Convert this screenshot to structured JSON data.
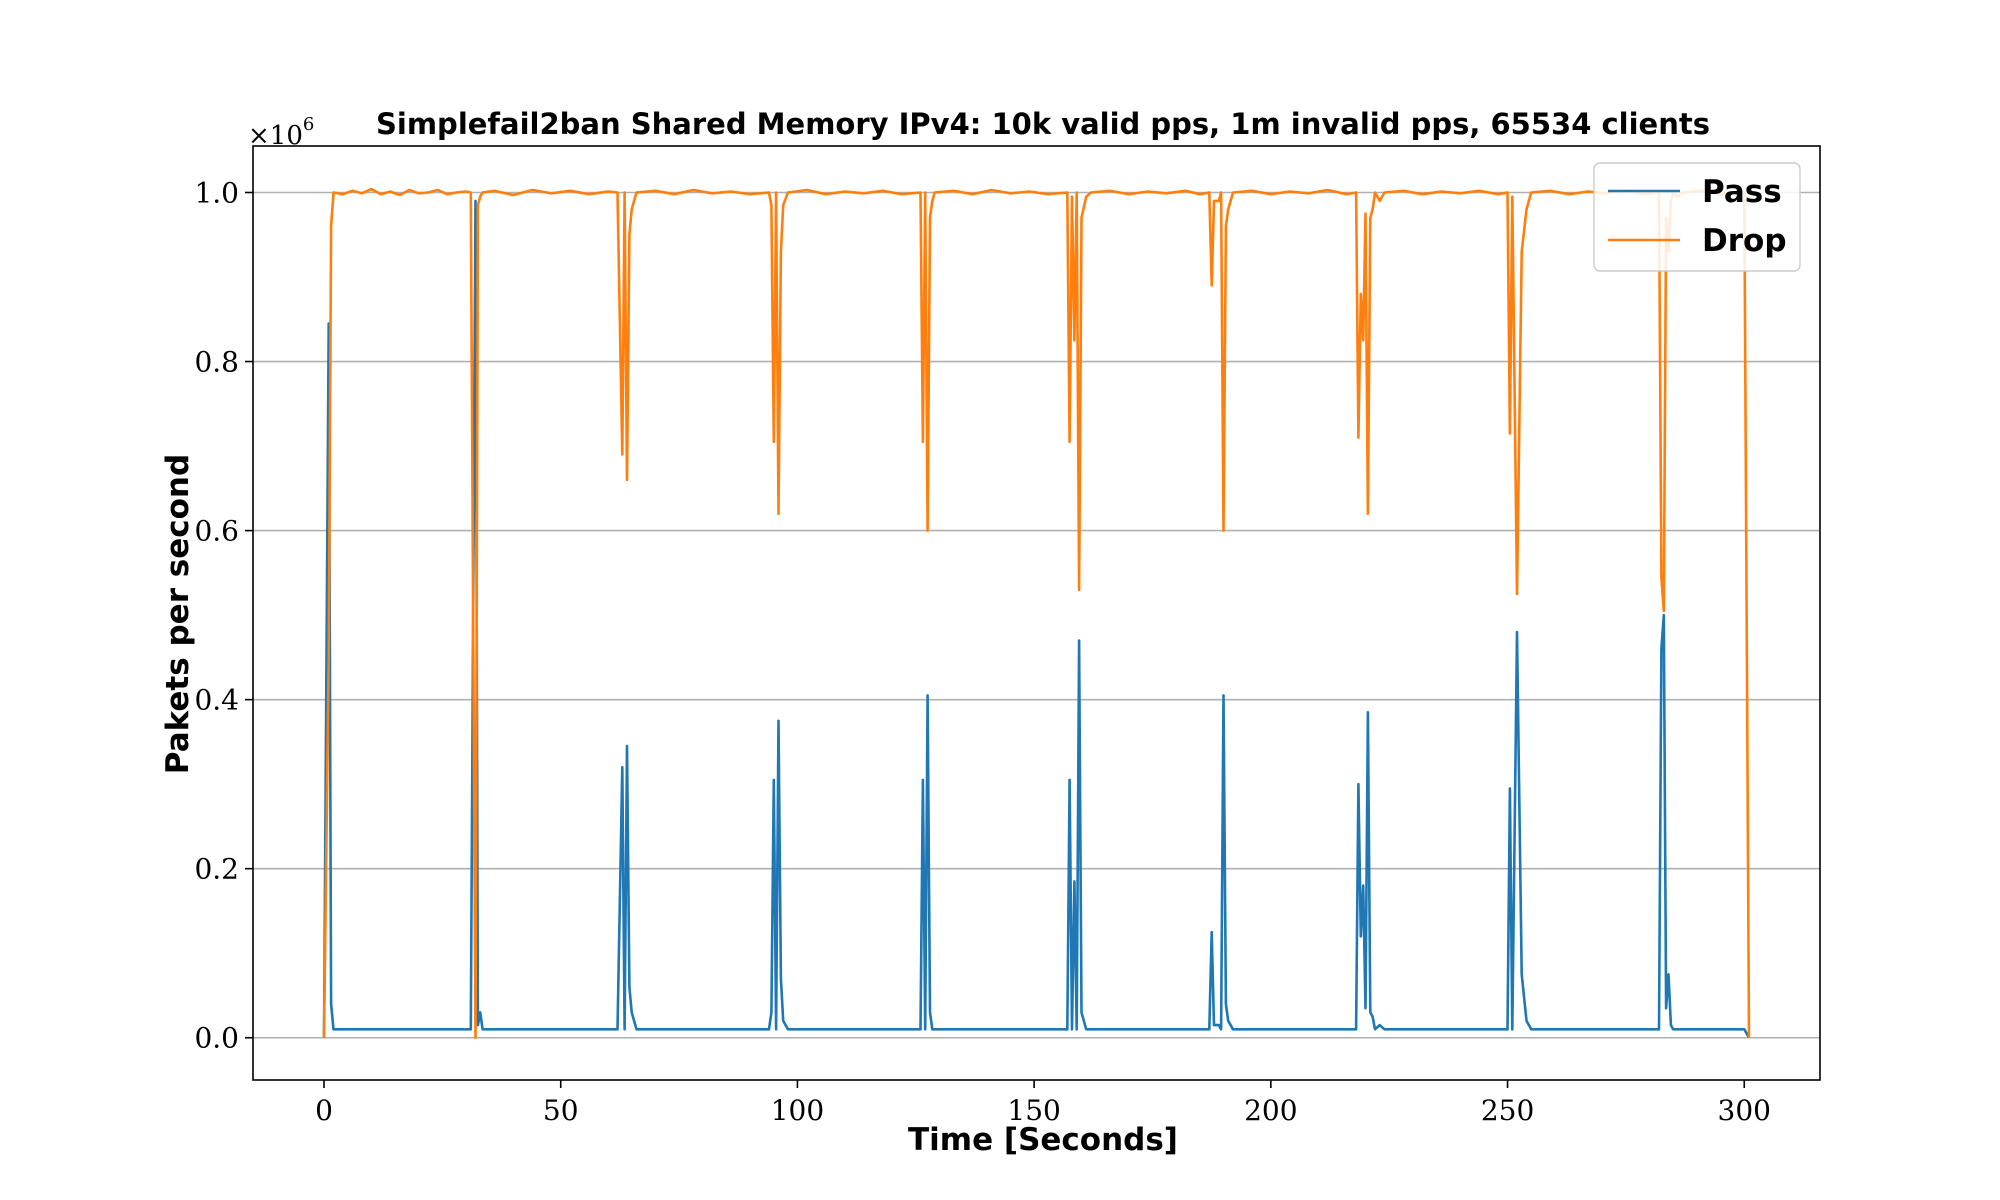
{
  "chart_data": {
    "type": "line",
    "title": "Simplefail2ban Shared Memory IPv4: 10k valid pps, 1m invalid pps, 65534 clients",
    "xlabel": "Time [Seconds]",
    "ylabel": "Pakets per second",
    "y_multiplier_label": "×10",
    "y_multiplier_exponent": "6",
    "xlim": [
      -15,
      316
    ],
    "ylim": [
      -0.05,
      1.055
    ],
    "x_ticks": [
      0,
      50,
      100,
      150,
      200,
      250,
      300
    ],
    "x_tick_labels": [
      "0",
      "50",
      "100",
      "150",
      "200",
      "250",
      "300"
    ],
    "y_ticks": [
      0.0,
      0.2,
      0.4,
      0.6,
      0.8,
      1.0
    ],
    "y_tick_labels": [
      "0.0",
      "0.2",
      "0.4",
      "0.6",
      "0.8",
      "1.0"
    ],
    "y_grid": true,
    "x_grid": false,
    "legend_position": "top-right",
    "series": [
      {
        "name": "Pass",
        "color": "#1f77b4",
        "points": [
          [
            0,
            0
          ],
          [
            1,
            0.845
          ],
          [
            1.5,
            0.04
          ],
          [
            2,
            0.01
          ],
          [
            31,
            0.01
          ],
          [
            32,
            0.99
          ],
          [
            32.5,
            0.015
          ],
          [
            33,
            0.03
          ],
          [
            33.5,
            0.01
          ],
          [
            62,
            0.01
          ],
          [
            63,
            0.32
          ],
          [
            63.5,
            0.01
          ],
          [
            64,
            0.345
          ],
          [
            64.5,
            0.06
          ],
          [
            65,
            0.03
          ],
          [
            66,
            0.01
          ],
          [
            94,
            0.01
          ],
          [
            94.5,
            0.03
          ],
          [
            95,
            0.305
          ],
          [
            95.5,
            0.01
          ],
          [
            96,
            0.375
          ],
          [
            96.5,
            0.07
          ],
          [
            97,
            0.02
          ],
          [
            98,
            0.01
          ],
          [
            126,
            0.01
          ],
          [
            126.5,
            0.305
          ],
          [
            127,
            0.01
          ],
          [
            127.5,
            0.405
          ],
          [
            128,
            0.03
          ],
          [
            128.5,
            0.01
          ],
          [
            157,
            0.01
          ],
          [
            157.5,
            0.305
          ],
          [
            158,
            0.01
          ],
          [
            158.5,
            0.185
          ],
          [
            159,
            0.01
          ],
          [
            159.5,
            0.47
          ],
          [
            160,
            0.03
          ],
          [
            161,
            0.01
          ],
          [
            187,
            0.01
          ],
          [
            187.5,
            0.125
          ],
          [
            188,
            0.015
          ],
          [
            189,
            0.015
          ],
          [
            189.5,
            0.01
          ],
          [
            190,
            0.405
          ],
          [
            190.5,
            0.04
          ],
          [
            191,
            0.02
          ],
          [
            192,
            0.01
          ],
          [
            218,
            0.01
          ],
          [
            218.5,
            0.3
          ],
          [
            219,
            0.12
          ],
          [
            219.5,
            0.18
          ],
          [
            220,
            0.035
          ],
          [
            220.5,
            0.385
          ],
          [
            221,
            0.03
          ],
          [
            221.5,
            0.025
          ],
          [
            222,
            0.01
          ],
          [
            223,
            0.015
          ],
          [
            224,
            0.01
          ],
          [
            250,
            0.01
          ],
          [
            250.5,
            0.295
          ],
          [
            251,
            0.01
          ],
          [
            252,
            0.48
          ],
          [
            253,
            0.075
          ],
          [
            254,
            0.02
          ],
          [
            255,
            0.01
          ],
          [
            282,
            0.01
          ],
          [
            282.5,
            0.46
          ],
          [
            283,
            0.5
          ],
          [
            283.5,
            0.035
          ],
          [
            284,
            0.075
          ],
          [
            284.5,
            0.015
          ],
          [
            285,
            0.01
          ],
          [
            286,
            0.01
          ],
          [
            287,
            0.01
          ],
          [
            300,
            0.01
          ],
          [
            301,
            0.0
          ]
        ]
      },
      {
        "name": "Drop",
        "color": "#ff7f0e",
        "points": [
          [
            0,
            0
          ],
          [
            1,
            0.45
          ],
          [
            1.5,
            0.96
          ],
          [
            2,
            1.0
          ],
          [
            4,
            0.998
          ],
          [
            6,
            1.002
          ],
          [
            8,
            0.999
          ],
          [
            10,
            1.004
          ],
          [
            12,
            0.998
          ],
          [
            14,
            1.001
          ],
          [
            16,
            0.997
          ],
          [
            18,
            1.003
          ],
          [
            20,
            0.999
          ],
          [
            22,
            1.0
          ],
          [
            24,
            1.003
          ],
          [
            26,
            0.998
          ],
          [
            28,
            1.0
          ],
          [
            30,
            1.001
          ],
          [
            31,
            1.0
          ],
          [
            32,
            0.0
          ],
          [
            32.5,
            0.985
          ],
          [
            33,
            0.995
          ],
          [
            33.5,
            1.0
          ],
          [
            36,
            1.002
          ],
          [
            40,
            0.997
          ],
          [
            44,
            1.003
          ],
          [
            48,
            0.999
          ],
          [
            52,
            1.002
          ],
          [
            56,
            0.998
          ],
          [
            60,
            1.001
          ],
          [
            62,
            1.0
          ],
          [
            63,
            0.69
          ],
          [
            63.5,
            1.0
          ],
          [
            64,
            0.66
          ],
          [
            64.5,
            0.95
          ],
          [
            65,
            0.98
          ],
          [
            66,
            1.0
          ],
          [
            70,
            1.002
          ],
          [
            74,
            0.998
          ],
          [
            78,
            1.003
          ],
          [
            82,
            0.999
          ],
          [
            86,
            1.001
          ],
          [
            90,
            0.998
          ],
          [
            94,
            1.0
          ],
          [
            94.5,
            0.985
          ],
          [
            95,
            0.705
          ],
          [
            95.5,
            1.0
          ],
          [
            96,
            0.62
          ],
          [
            96.5,
            0.93
          ],
          [
            97,
            0.985
          ],
          [
            98,
            1.0
          ],
          [
            102,
            1.003
          ],
          [
            106,
            0.998
          ],
          [
            110,
            1.001
          ],
          [
            114,
            0.999
          ],
          [
            118,
            1.002
          ],
          [
            122,
            0.998
          ],
          [
            126,
            1.0
          ],
          [
            126.5,
            0.705
          ],
          [
            127,
            1.0
          ],
          [
            127.5,
            0.6
          ],
          [
            128,
            0.97
          ],
          [
            128.5,
            0.99
          ],
          [
            129,
            1.0
          ],
          [
            133,
            1.002
          ],
          [
            137,
            0.998
          ],
          [
            141,
            1.003
          ],
          [
            145,
            0.999
          ],
          [
            149,
            1.001
          ],
          [
            153,
            0.998
          ],
          [
            157,
            1.0
          ],
          [
            157.5,
            0.705
          ],
          [
            158,
            0.995
          ],
          [
            158.5,
            0.825
          ],
          [
            159,
            1.0
          ],
          [
            159.5,
            0.53
          ],
          [
            160,
            0.97
          ],
          [
            161,
            0.995
          ],
          [
            162,
            1.0
          ],
          [
            166,
            1.002
          ],
          [
            170,
            0.998
          ],
          [
            174,
            1.001
          ],
          [
            178,
            0.999
          ],
          [
            182,
            1.002
          ],
          [
            185,
            0.998
          ],
          [
            187,
            1.0
          ],
          [
            187.5,
            0.89
          ],
          [
            188,
            0.99
          ],
          [
            189,
            0.99
          ],
          [
            189.5,
            1.0
          ],
          [
            190,
            0.6
          ],
          [
            190.5,
            0.96
          ],
          [
            191,
            0.98
          ],
          [
            192,
            1.0
          ],
          [
            196,
            1.002
          ],
          [
            200,
            0.998
          ],
          [
            204,
            1.001
          ],
          [
            208,
            0.999
          ],
          [
            212,
            1.003
          ],
          [
            216,
            0.998
          ],
          [
            218,
            1.0
          ],
          [
            218.5,
            0.71
          ],
          [
            219,
            0.88
          ],
          [
            219.5,
            0.825
          ],
          [
            220,
            0.975
          ],
          [
            220.5,
            0.62
          ],
          [
            221,
            0.97
          ],
          [
            221.5,
            0.98
          ],
          [
            222,
            1.0
          ],
          [
            223,
            0.99
          ],
          [
            224,
            1.0
          ],
          [
            228,
            1.002
          ],
          [
            232,
            0.998
          ],
          [
            236,
            1.001
          ],
          [
            240,
            0.999
          ],
          [
            244,
            1.002
          ],
          [
            248,
            0.998
          ],
          [
            250,
            1.0
          ],
          [
            250.5,
            0.715
          ],
          [
            251,
            0.995
          ],
          [
            252,
            0.525
          ],
          [
            253,
            0.93
          ],
          [
            254,
            0.98
          ],
          [
            255,
            1.0
          ],
          [
            259,
            1.002
          ],
          [
            263,
            0.998
          ],
          [
            267,
            1.001
          ],
          [
            271,
            0.999
          ],
          [
            275,
            1.002
          ],
          [
            279,
            0.998
          ],
          [
            282,
            1.0
          ],
          [
            282.5,
            0.545
          ],
          [
            283,
            0.505
          ],
          [
            283.5,
            0.97
          ],
          [
            284,
            0.93
          ],
          [
            284.5,
            0.99
          ],
          [
            285,
            1.0
          ],
          [
            286,
            0.995
          ],
          [
            287,
            1.0
          ],
          [
            291,
            1.002
          ],
          [
            295,
            0.998
          ],
          [
            299,
            1.001
          ],
          [
            300,
            1.0
          ],
          [
            301,
            0.0
          ]
        ]
      }
    ]
  }
}
